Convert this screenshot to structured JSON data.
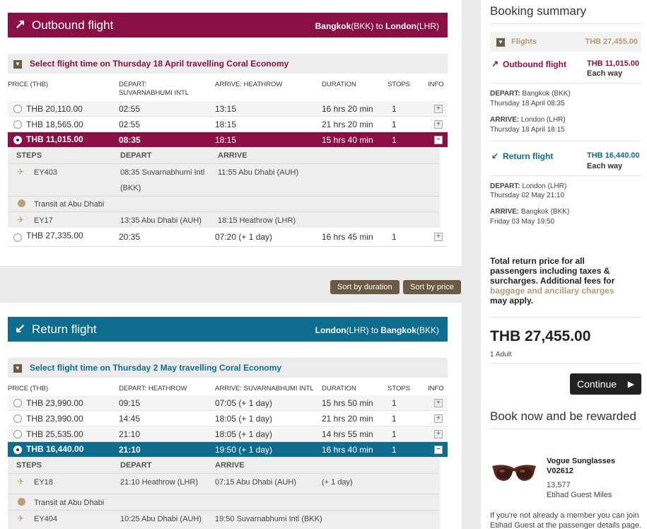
{
  "outbound": {
    "title": "Outbound flight",
    "route_from": "Bangkok",
    "route_from_code": "(BKK)",
    "route_to_word": " to ",
    "route_to": "London",
    "route_to_code": "(LHR)",
    "select_text": "Select flight time on Thursday 18 April travelling Coral Economy",
    "headers": {
      "price": "PRICE (THB)",
      "depart": "DEPART: SUVARNABHUMI INTL",
      "arrive": "ARRIVE: HEATHROW",
      "duration": "DURATION",
      "stops": "STOPS",
      "info": "INFO"
    },
    "rows": [
      {
        "price": "THB 20,110.00",
        "depart": "02:55",
        "arrive": "13:15",
        "duration": "16 hrs 20 min",
        "stops": "1",
        "info": "+"
      },
      {
        "price": "THB 18,565.00",
        "depart": "02:55",
        "arrive": "18:15",
        "duration": "21 hrs 20 min",
        "stops": "1",
        "info": "+"
      },
      {
        "price": "THB 11,015.00",
        "depart": "08:35",
        "arrive": "18:15",
        "duration": "15 hrs 40 min",
        "stops": "1",
        "info": "−"
      },
      {
        "price": "THB 27,335.00",
        "depart": "20:35",
        "arrive": "07:20 (+ 1 day)",
        "duration": "16 hrs 45 min",
        "stops": "1",
        "info": "+"
      }
    ],
    "details": {
      "steps_label": "STEPS",
      "depart_label": "DEPART",
      "arrive_label": "ARRIVE",
      "leg1_flight": "EY403",
      "leg1_depart": "08:35 Suvarnabhumi Intl",
      "leg1_depart2": "(BKK)",
      "leg1_arrive": "11:55 Abu Dhabi (AUH)",
      "transit": "Transit at Abu Dhabi",
      "leg2_flight": "EY17",
      "leg2_depart": "13:35 Abu Dhabi (AUH)",
      "leg2_arrive": "18:15 Heathrow (LHR)"
    }
  },
  "sort": {
    "by_duration": "Sort by duration",
    "by_price": "Sort by price"
  },
  "return": {
    "title": "Return flight",
    "route_from": "London",
    "route_from_code": "(LHR)",
    "route_to_word": " to ",
    "route_to": "Bangkok",
    "route_to_code": "(BKK)",
    "select_text": "Select flight time on Thursday 2 May travelling Coral Economy",
    "headers": {
      "price": "PRICE (THB)",
      "depart": "DEPART: HEATHROW",
      "arrive": "ARRIVE: SUVARNABHUMI INTL",
      "duration": "DURATION",
      "stops": "STOPS",
      "info": "INFO"
    },
    "rows": [
      {
        "price": "THB 23,990.00",
        "depart": "09:15",
        "arrive": "07:05 (+ 1 day)",
        "duration": "15 hrs 50 min",
        "stops": "1",
        "info": "+"
      },
      {
        "price": "THB 23,990.00",
        "depart": "14:45",
        "arrive": "18:05 (+ 1 day)",
        "duration": "21 hrs 20 min",
        "stops": "1",
        "info": "+"
      },
      {
        "price": "THB 25,535.00",
        "depart": "21:10",
        "arrive": "18:05 (+ 1 day)",
        "duration": "14 hrs 55 min",
        "stops": "1",
        "info": "+"
      },
      {
        "price": "THB 16,440.00",
        "depart": "21:10",
        "arrive": "19:50 (+ 1 day)",
        "duration": "16 hrs 40 min",
        "stops": "1",
        "info": "−"
      }
    ],
    "details": {
      "steps_label": "STEPS",
      "depart_label": "DEPART",
      "arrive_label": "ARRIVE",
      "leg1_flight": "EY18",
      "leg1_depart": "21:10 Heathrow (LHR)",
      "leg1_arrive": "07:15 Abu Dhabi (AUH)",
      "leg1_note": "(+ 1 day)",
      "transit": "Transit at Abu Dhabi",
      "leg2_flight": "EY404",
      "leg2_depart": "10:25 Abu Dhabi (AUH)",
      "leg2_arrive": "19:50 Suvarnabhumi Intl (BKK)"
    }
  },
  "summary": {
    "title": "Booking summary",
    "flights_label": "Flights",
    "flights_total": "THB 27,455.00",
    "outbound_label": "Outbound flight",
    "outbound_price": "THB 11,015.00",
    "outbound_each": "Each way",
    "out_depart_label": "DEPART:",
    "out_depart_place": " Bangkok (BKK)",
    "out_depart_time": "Thursday 18 April 08:35",
    "out_arrive_label": "ARRIVE:",
    "out_arrive_place": " London (LHR)",
    "out_arrive_time": "Thursday 18 April 18:15",
    "return_label": "Return flight",
    "return_price": "THB 16,440.00",
    "return_each": "Each way",
    "ret_depart_label": "DEPART:",
    "ret_depart_place": " London (LHR)",
    "ret_depart_time": "Thursday 02 May 21:10",
    "ret_arrive_label": "ARRIVE:",
    "ret_arrive_place": " Bangkok (BKK)",
    "ret_arrive_time": "Friday 03 May 19:50",
    "total_text_1": "Total return price for all",
    "total_text_2": "passengers including taxes &",
    "total_text_3": "surcharges. Additional fees for",
    "fees_link": "baggage and ancillary charges",
    "total_text_4": "may apply.",
    "total_price": "THB 27,455.00",
    "adults": "1 Adult",
    "continue": "Continue",
    "reward_title": "Book now and be rewarded",
    "product_name": "Vogue Sunglasses",
    "product_code": "V02612",
    "miles": "13,577",
    "miles_label": "Etihad Guest Miles",
    "member_text_1": "If you're not already a member you can join",
    "member_text_2": "Etihad Guest at the passenger details page."
  },
  "colors": {
    "outbound": "#8a0f45",
    "return": "#0e6d8f",
    "accent": "#b59c6f",
    "button": "#6b5a44"
  }
}
